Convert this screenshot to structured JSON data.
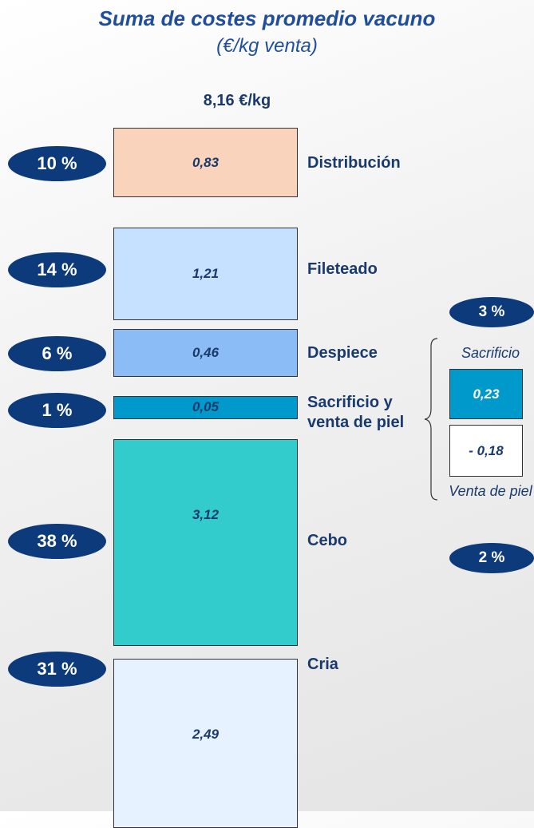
{
  "chart_data": {
    "type": "stacked_column",
    "title": "Suma de costes promedio vacuno",
    "subtitle": "(€/kg venta)",
    "total": 8.16,
    "total_label": "8,16 €/kg",
    "categories": [
      "Distribución",
      "Fileteado",
      "Despiece",
      "Sacrificio y venta de piel",
      "Cebo",
      "Cria"
    ],
    "values": [
      0.83,
      1.21,
      0.46,
      0.05,
      3.12,
      2.49
    ],
    "value_labels": [
      "0,83",
      "1,21",
      "0,46",
      "0,05",
      "3,12",
      "2,49"
    ],
    "shares": [
      10,
      14,
      6,
      1,
      38,
      31
    ],
    "share_labels": [
      "10 %",
      "14 %",
      "6 %",
      "1 %",
      "38 %",
      "31 %"
    ],
    "colors": [
      "#f9d3bb",
      "#c5e1ff",
      "#8cbcf5",
      "#0099cc",
      "#33cccc",
      "#e6f2ff"
    ],
    "breakdown": {
      "categories": [
        "Sacrificio",
        "Venta de piel"
      ],
      "values": [
        0.23,
        -0.18
      ],
      "value_labels": [
        "0,23",
        "- 0,18"
      ],
      "shares": [
        3,
        2
      ],
      "share_labels": [
        "3 %",
        "2 %"
      ],
      "colors": [
        "#0099cc",
        "#ffffff"
      ]
    }
  }
}
